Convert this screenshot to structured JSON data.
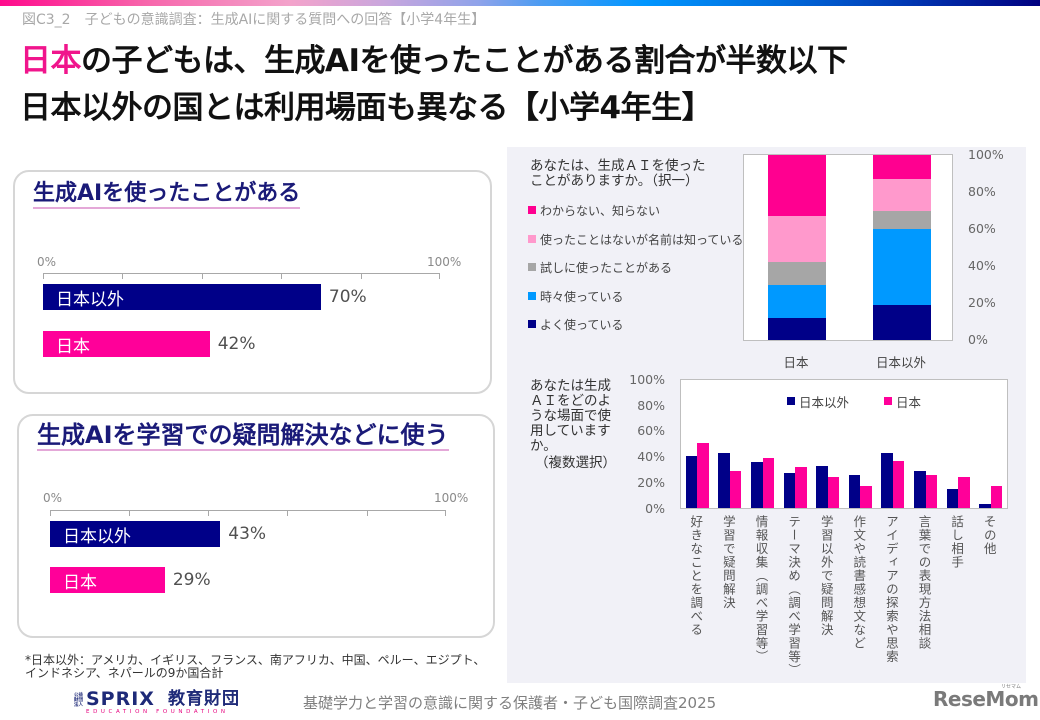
{
  "header": {
    "figure_caption": "図C3_2　子どもの意識調査：生成AIに関する質問への回答【小学4年生】",
    "headline_line1_highlight": "日本",
    "headline_line1_rest": "の子どもは、生成AIを使ったことがある割合が半数以下",
    "headline_line2": "日本以外の国とは利用場面も異なる【小学4年生】"
  },
  "colors": {
    "highlight_magenta": "#f0158c",
    "navy": "#000088",
    "pink": "#ff0099",
    "card_title": "#1a1a78",
    "panel_bg": "#f1f1f7"
  },
  "usage_panel": {
    "question_lines": [
      "あなたは、生成ＡＩを使った",
      "ことがありますか。（択一）"
    ]
  },
  "scenes_panel": {
    "question_lines": [
      "あなたは生成",
      "ＡＩをどのよ",
      "うな場面で使",
      "用しています",
      "か。",
      "（複数選択）"
    ]
  },
  "footer": {
    "note_line1": "*日本以外：アメリカ、イギリス、フランス、南アフリカ、中国、ペルー、エジプト、",
    "note_line2": "インドネシア、ネパールの9か国合計",
    "sprix_logo": {
      "corp_type": "公益財団法人",
      "name": "SPRIX",
      "name_jp": "教育財団",
      "tagline": "EDUCATION FOUNDATION"
    },
    "survey_name": "基礎学力と学習の意識に関する保護者・子ども国際調査2025",
    "resemom_logo": {
      "name": "ReseMom.",
      "kana": "リセマム"
    }
  },
  "chart_data": [
    {
      "type": "bar",
      "orientation": "horizontal",
      "title": "生成AIを使ったことがある",
      "categories": [
        "日本以外",
        "日本"
      ],
      "values": [
        70,
        42
      ],
      "data_labels": [
        "70%",
        "42%"
      ],
      "colors": [
        "#000088",
        "#ff0099"
      ],
      "xlim": [
        0,
        100
      ],
      "tick_labels": [
        "0%",
        "100%"
      ],
      "xlabel": "",
      "ylabel": "",
      "grid": false
    },
    {
      "type": "bar",
      "orientation": "horizontal",
      "title": "生成AIを学習での疑問解決などに使う",
      "categories": [
        "日本以外",
        "日本"
      ],
      "values": [
        43,
        29
      ],
      "data_labels": [
        "43%",
        "29%"
      ],
      "colors": [
        "#000088",
        "#ff0099"
      ],
      "xlim": [
        0,
        100
      ],
      "tick_labels": [
        "0%",
        "100%"
      ],
      "xlabel": "",
      "ylabel": "",
      "grid": false
    },
    {
      "type": "bar",
      "stacked": true,
      "title": "あなたは、生成ＡＩを使ったことがありますか。（択一）",
      "categories": [
        "日本",
        "日本以外"
      ],
      "series": [
        {
          "name": "よく使っている",
          "color": "#000088",
          "values": [
            12,
            19
          ]
        },
        {
          "name": "時々使っている",
          "color": "#0099ff",
          "values": [
            18,
            41
          ]
        },
        {
          "name": "試しに使ったことがある",
          "color": "#a6a6a6",
          "values": [
            12,
            10
          ]
        },
        {
          "name": "使ったことはないが名前は知っている",
          "color": "#ff99cc",
          "values": [
            25,
            17
          ]
        },
        {
          "name": "わからない、知らない",
          "color": "#ff0090",
          "values": [
            33,
            13
          ]
        }
      ],
      "ylim": [
        0,
        100
      ],
      "y_tick_labels": [
        "100%",
        "80%",
        "60%",
        "40%",
        "20%",
        "0%"
      ],
      "legend_position": "left",
      "xlabel": "",
      "ylabel": ""
    },
    {
      "type": "bar",
      "title": "あなたは生成ＡＩをどのような場面で使用していますか。（複数選択）",
      "categories": [
        "好きなことを調べる",
        "学習で疑問解決",
        "情報収集（調べ学習等）",
        "テーマ決め（調べ学習等）",
        "学習以外で疑問解決",
        "作文や読書感想文など",
        "アイディアの探索や思索",
        "言葉での表現方法相談",
        "話し相手",
        "その他"
      ],
      "series": [
        {
          "name": "日本以外",
          "color": "#000088",
          "values": [
            41,
            43,
            36,
            27,
            33,
            26,
            43,
            29,
            15,
            3
          ]
        },
        {
          "name": "日本",
          "color": "#ff0099",
          "values": [
            51,
            29,
            39,
            32,
            24,
            17,
            37,
            26,
            24,
            17
          ]
        }
      ],
      "ylim": [
        0,
        100
      ],
      "y_tick_labels": [
        "100%",
        "80%",
        "60%",
        "40%",
        "20%",
        "0%"
      ],
      "legend_position": "top",
      "xlabel": "",
      "ylabel": ""
    }
  ]
}
